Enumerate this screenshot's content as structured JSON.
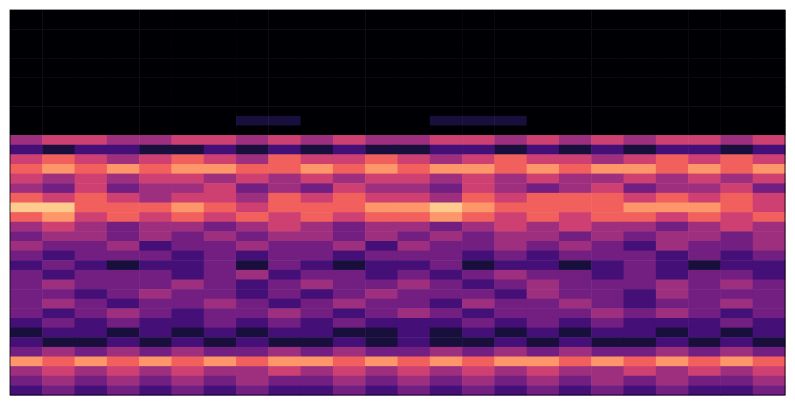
{
  "chart_data": {
    "type": "heatmap",
    "tick_labels": false,
    "zlim": [
      0,
      9
    ],
    "cells": [
      [
        0,
        0,
        0,
        0,
        0,
        0,
        0,
        0,
        0,
        0,
        0,
        0,
        0,
        0,
        0,
        0,
        0,
        0,
        0,
        0,
        0,
        0,
        0,
        0
      ],
      [
        0,
        0,
        0,
        0,
        0,
        0,
        0,
        0,
        0,
        0,
        0,
        0,
        0,
        0,
        0,
        0,
        0,
        0,
        0,
        0,
        0,
        0,
        0,
        0
      ],
      [
        0,
        0,
        0,
        0,
        0,
        0,
        0,
        0,
        0,
        0,
        0,
        0,
        0,
        0,
        0,
        0,
        0,
        0,
        0,
        0,
        0,
        0,
        0,
        0
      ],
      [
        0,
        0,
        0,
        0,
        0,
        0,
        0,
        0,
        0,
        0,
        0,
        0,
        0,
        0,
        0,
        0,
        0,
        0,
        0,
        0,
        0,
        0,
        0,
        0
      ],
      [
        0,
        0,
        0,
        0,
        0,
        0,
        0,
        0,
        0,
        0,
        0,
        0,
        0,
        0,
        0,
        0,
        0,
        0,
        0,
        0,
        0,
        0,
        0,
        0
      ],
      [
        0,
        0,
        0,
        0,
        0,
        0,
        0,
        0,
        0,
        0,
        0,
        0,
        0,
        0,
        0,
        0,
        0,
        0,
        0,
        0,
        0,
        0,
        0,
        0
      ],
      [
        0,
        0,
        0,
        0,
        0,
        0,
        0,
        0,
        0,
        0,
        0,
        0,
        0,
        0,
        0,
        0,
        0,
        0,
        0,
        0,
        0,
        0,
        0,
        0
      ],
      [
        0,
        0,
        0,
        0,
        0,
        0,
        0,
        0,
        0,
        0,
        0,
        0,
        0,
        0,
        0,
        0,
        0,
        0,
        0,
        0,
        0,
        0,
        0,
        0
      ],
      [
        0,
        0,
        0,
        0,
        0,
        0,
        0,
        0,
        0,
        0,
        0,
        0,
        0,
        0,
        0,
        0,
        0,
        0,
        0,
        0,
        0,
        0,
        0,
        0
      ],
      [
        0,
        0,
        0,
        0,
        0,
        0,
        0,
        0,
        0,
        0,
        0,
        0,
        0,
        0,
        0,
        0,
        0,
        0,
        0,
        0,
        0,
        0,
        0,
        0
      ],
      [
        0,
        0,
        0,
        0,
        0,
        0,
        0,
        0,
        0,
        0,
        0,
        0,
        0,
        0,
        0,
        0,
        0,
        0,
        0,
        0,
        0,
        0,
        0,
        0
      ],
      [
        0,
        0,
        0,
        0,
        0,
        0,
        0,
        1,
        1,
        0,
        0,
        0,
        0,
        1,
        1,
        1,
        0,
        0,
        0,
        0,
        0,
        0,
        0,
        0
      ],
      [
        0,
        0,
        0,
        0,
        0,
        0,
        0,
        0,
        0,
        0,
        0,
        0,
        0,
        0,
        0,
        0,
        0,
        0,
        0,
        0,
        0,
        0,
        0,
        0
      ],
      [
        4,
        5,
        5,
        4,
        4,
        5,
        5,
        4,
        5,
        4,
        5,
        4,
        4,
        5,
        5,
        4,
        5,
        4,
        5,
        4,
        5,
        5,
        4,
        5
      ],
      [
        2,
        1,
        2,
        2,
        1,
        1,
        2,
        1,
        2,
        1,
        2,
        1,
        1,
        2,
        2,
        1,
        2,
        1,
        2,
        1,
        2,
        2,
        1,
        2
      ],
      [
        5,
        6,
        5,
        4,
        5,
        6,
        5,
        4,
        6,
        5,
        5,
        6,
        5,
        4,
        5,
        6,
        5,
        5,
        4,
        5,
        6,
        5,
        6,
        5
      ],
      [
        6,
        7,
        6,
        7,
        6,
        7,
        7,
        6,
        6,
        7,
        6,
        7,
        6,
        7,
        7,
        6,
        7,
        6,
        7,
        7,
        6,
        7,
        6,
        7
      ],
      [
        5,
        4,
        5,
        4,
        5,
        5,
        4,
        5,
        4,
        5,
        4,
        5,
        5,
        4,
        5,
        4,
        5,
        4,
        4,
        5,
        4,
        5,
        4,
        5
      ],
      [
        4,
        3,
        5,
        3,
        4,
        4,
        5,
        3,
        4,
        3,
        5,
        4,
        4,
        3,
        5,
        4,
        3,
        4,
        5,
        3,
        4,
        4,
        5,
        3
      ],
      [
        6,
        5,
        6,
        5,
        4,
        5,
        5,
        4,
        6,
        5,
        6,
        5,
        5,
        4,
        6,
        5,
        6,
        6,
        6,
        5,
        6,
        5,
        6,
        5
      ],
      [
        8,
        8,
        6,
        6,
        6,
        7,
        6,
        5,
        6,
        6,
        6,
        7,
        7,
        8,
        7,
        6,
        6,
        6,
        6,
        7,
        7,
        7,
        6,
        5
      ],
      [
        6,
        7,
        5,
        6,
        5,
        6,
        5,
        6,
        5,
        6,
        5,
        6,
        6,
        7,
        6,
        5,
        6,
        5,
        6,
        6,
        5,
        6,
        5,
        6
      ],
      [
        4,
        5,
        4,
        3,
        4,
        4,
        3,
        4,
        5,
        4,
        3,
        4,
        4,
        3,
        4,
        5,
        4,
        5,
        4,
        4,
        3,
        4,
        5,
        4
      ],
      [
        3,
        4,
        4,
        3,
        4,
        3,
        4,
        3,
        4,
        4,
        3,
        4,
        3,
        4,
        3,
        4,
        4,
        3,
        4,
        3,
        4,
        4,
        3,
        4
      ],
      [
        4,
        3,
        3,
        4,
        2,
        3,
        3,
        4,
        3,
        3,
        4,
        2,
        4,
        3,
        3,
        4,
        3,
        4,
        3,
        2,
        4,
        3,
        3,
        4
      ],
      [
        3,
        2,
        3,
        3,
        3,
        2,
        3,
        2,
        3,
        3,
        2,
        3,
        3,
        3,
        2,
        3,
        2,
        3,
        3,
        3,
        2,
        3,
        2,
        3
      ],
      [
        2,
        3,
        2,
        1,
        2,
        2,
        3,
        1,
        3,
        2,
        1,
        2,
        2,
        3,
        1,
        2,
        2,
        1,
        2,
        3,
        2,
        1,
        2,
        2
      ],
      [
        3,
        2,
        3,
        3,
        3,
        2,
        3,
        4,
        2,
        3,
        3,
        2,
        3,
        2,
        3,
        4,
        3,
        3,
        2,
        3,
        2,
        3,
        3,
        2
      ],
      [
        3,
        4,
        3,
        3,
        3,
        4,
        3,
        2,
        3,
        4,
        3,
        3,
        4,
        3,
        2,
        3,
        4,
        3,
        3,
        3,
        4,
        3,
        4,
        3
      ],
      [
        3,
        3,
        2,
        3,
        4,
        3,
        3,
        2,
        3,
        2,
        3,
        4,
        3,
        3,
        3,
        2,
        4,
        3,
        3,
        2,
        4,
        3,
        3,
        3
      ],
      [
        3,
        4,
        3,
        2,
        3,
        3,
        4,
        3,
        2,
        3,
        4,
        3,
        3,
        2,
        4,
        3,
        3,
        4,
        3,
        2,
        3,
        3,
        4,
        3
      ],
      [
        3,
        2,
        3,
        4,
        3,
        2,
        3,
        3,
        4,
        3,
        2,
        3,
        4,
        3,
        2,
        3,
        3,
        3,
        4,
        3,
        4,
        3,
        2,
        3
      ],
      [
        2,
        3,
        2,
        3,
        2,
        2,
        3,
        2,
        3,
        2,
        3,
        2,
        2,
        2,
        3,
        2,
        3,
        2,
        3,
        2,
        2,
        2,
        3,
        2
      ],
      [
        1,
        2,
        2,
        1,
        2,
        1,
        2,
        1,
        2,
        2,
        1,
        1,
        2,
        1,
        2,
        1,
        2,
        1,
        2,
        2,
        1,
        2,
        1,
        2
      ],
      [
        2,
        1,
        1,
        2,
        1,
        2,
        1,
        2,
        1,
        1,
        2,
        1,
        2,
        1,
        1,
        2,
        1,
        2,
        1,
        1,
        2,
        1,
        2,
        1
      ],
      [
        3,
        4,
        3,
        4,
        3,
        4,
        3,
        3,
        4,
        3,
        4,
        3,
        3,
        4,
        3,
        4,
        3,
        4,
        3,
        3,
        4,
        3,
        4,
        3
      ],
      [
        7,
        6,
        7,
        6,
        7,
        6,
        7,
        6,
        7,
        7,
        6,
        7,
        6,
        7,
        6,
        7,
        7,
        6,
        7,
        6,
        7,
        6,
        7,
        6
      ],
      [
        4,
        5,
        4,
        5,
        4,
        5,
        4,
        4,
        5,
        4,
        5,
        4,
        5,
        4,
        5,
        4,
        5,
        4,
        4,
        5,
        4,
        5,
        4,
        5
      ],
      [
        3,
        4,
        3,
        4,
        3,
        4,
        3,
        4,
        3,
        3,
        4,
        3,
        4,
        3,
        4,
        3,
        4,
        3,
        4,
        3,
        4,
        3,
        3,
        4
      ],
      [
        2,
        3,
        2,
        3,
        2,
        3,
        2,
        3,
        2,
        2,
        3,
        2,
        3,
        2,
        3,
        2,
        3,
        2,
        3,
        2,
        3,
        2,
        2,
        3
      ]
    ]
  }
}
